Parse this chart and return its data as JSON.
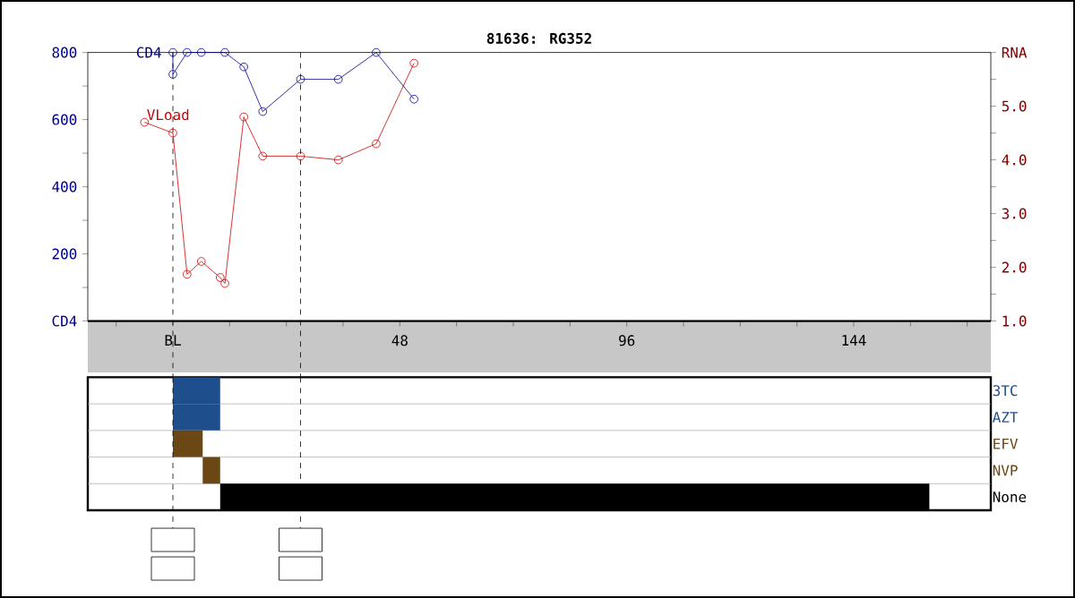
{
  "chart_data": [
    {
      "type": "line",
      "title": "81636: RG352",
      "xlim": [
        -18,
        173
      ],
      "xticks": [
        {
          "value": -12,
          "label": null
        },
        {
          "value": 0,
          "label": "BL"
        },
        {
          "value": 12,
          "label": null
        },
        {
          "value": 24,
          "label": null
        },
        {
          "value": 36,
          "label": null
        },
        48,
        {
          "value": 60,
          "label": null
        },
        {
          "value": 72,
          "label": null
        },
        {
          "value": 84,
          "label": null
        },
        96,
        {
          "value": 108,
          "label": null
        },
        {
          "value": 120,
          "label": null
        },
        {
          "value": 132,
          "label": null
        },
        144,
        {
          "value": 156,
          "label": null
        },
        {
          "value": 168,
          "label": null
        }
      ],
      "ylim": [
        0,
        800
      ],
      "yticks": [
        {
          "value": 0,
          "label": "CD4"
        },
        {
          "value": 100,
          "label": null
        },
        200,
        {
          "value": 300,
          "label": null
        },
        400,
        {
          "value": 500,
          "label": null
        },
        600,
        {
          "value": 700,
          "label": null
        },
        800
      ],
      "y2lim": [
        1,
        6
      ],
      "y2ticks": [
        {
          "value": 1,
          "label": "1.0"
        },
        {
          "value": 1.5,
          "label": null
        },
        {
          "value": 2,
          "label": "2.0"
        },
        {
          "value": 2.5,
          "label": null
        },
        {
          "value": 3,
          "label": "3.0"
        },
        {
          "value": 3.5,
          "label": null
        },
        {
          "value": 4,
          "label": "4.0"
        },
        {
          "value": 4.5,
          "label": null
        },
        {
          "value": 5,
          "label": "5.0"
        },
        {
          "value": 5.5,
          "label": null
        },
        {
          "value": 6,
          "label": "RNA"
        }
      ],
      "marker": "circle",
      "line_style": "solid",
      "grid": false,
      "ref_lines": [
        {
          "axis": "x",
          "value": 0,
          "color": "#000000",
          "line_style": "dashed"
        },
        {
          "axis": "x",
          "value": 27,
          "color": "#000000",
          "line_style": "dashed"
        }
      ],
      "series": [
        {
          "name": "CD4",
          "color": "#00008b",
          "axis": "y",
          "x": [
            0,
            0,
            3,
            6,
            11,
            15,
            19,
            27,
            35,
            43,
            51
          ],
          "values": [
            800,
            735,
            800,
            800,
            800,
            757,
            624,
            720,
            720,
            800,
            661
          ]
        },
        {
          "name": "VLoad",
          "color": "#cc0000",
          "axis": "y2",
          "x": [
            -6,
            0,
            3,
            6,
            10,
            11,
            15,
            19,
            27,
            35,
            43,
            51
          ],
          "values": [
            4.7,
            4.5,
            1.87,
            2.11,
            1.81,
            1.7,
            4.8,
            4.07,
            4.07,
            4.0,
            4.3,
            5.8
          ]
        }
      ]
    },
    {
      "type": "bar",
      "orientation": "horizontal",
      "xlim": [
        -18,
        173
      ],
      "tick_labels": "y",
      "categories": [
        "3TC",
        "AZT",
        "EFV",
        "NVP",
        "None"
      ],
      "base": [
        0,
        0,
        0,
        6.3,
        10
      ],
      "values": [
        10,
        10,
        6.3,
        3.7,
        150
      ],
      "colors": [
        "#1f4e8c",
        "#1f4e8c",
        "#6b4713",
        "#6b4713",
        "#000000"
      ],
      "ref_lines": [
        {
          "axis": "x",
          "value": 0,
          "color": "#000000",
          "line_style": "dashed"
        },
        {
          "axis": "x",
          "value": 27,
          "color": "#000000",
          "line_style": "dashed"
        }
      ]
    }
  ]
}
